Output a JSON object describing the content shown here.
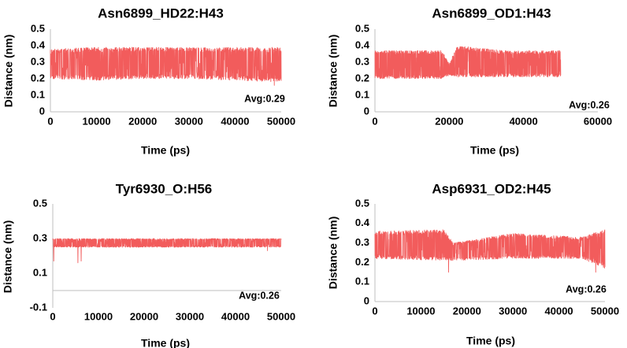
{
  "chart_data": [
    {
      "type": "line",
      "title": "Asn6899_HD22:H43",
      "xlabel": "Time (ps)",
      "ylabel": "Distance (nm)",
      "xlim": [
        0,
        50000
      ],
      "ylim": [
        0,
        0.5
      ],
      "xticks": [
        "0",
        "10000",
        "20000",
        "30000",
        "40000",
        "50000"
      ],
      "yticks": [
        "0",
        "0.1",
        "0.2",
        "0.3",
        "0.4",
        "0.5"
      ],
      "annotation": "Avg:0.29",
      "color": "#f25c5c",
      "series": [
        {
          "x_range": [
            0,
            50000
          ],
          "band": [
            {
              "x": 0,
              "low": 0.2,
              "high": 0.38
            },
            {
              "x": 10000,
              "low": 0.19,
              "high": 0.39
            },
            {
              "x": 20000,
              "low": 0.2,
              "high": 0.39
            },
            {
              "x": 30000,
              "low": 0.2,
              "high": 0.39
            },
            {
              "x": 40000,
              "low": 0.19,
              "high": 0.39
            },
            {
              "x": 50000,
              "low": 0.18,
              "high": 0.39
            }
          ],
          "dips": [
            {
              "x": 48500,
              "y": 0.16
            }
          ]
        }
      ]
    },
    {
      "type": "line",
      "title": "Asn6899_OD1:H43",
      "xlabel": "Time (ps)",
      "ylabel": "Distance (nm)",
      "xlim": [
        0,
        60000
      ],
      "ylim": [
        0,
        0.5
      ],
      "xticks": [
        "0",
        "20000",
        "40000",
        "60000"
      ],
      "yticks": [
        "0",
        "0.1",
        "0.2",
        "0.3",
        "0.4",
        "0.5"
      ],
      "annotation": "Avg:0.26",
      "color": "#f25c5c",
      "series": [
        {
          "x_range": [
            0,
            50000
          ],
          "band": [
            {
              "x": 0,
              "low": 0.2,
              "high": 0.37
            },
            {
              "x": 18000,
              "low": 0.2,
              "high": 0.37
            },
            {
              "x": 20000,
              "low": 0.22,
              "high": 0.29
            },
            {
              "x": 22000,
              "low": 0.21,
              "high": 0.4
            },
            {
              "x": 35000,
              "low": 0.21,
              "high": 0.37
            },
            {
              "x": 50000,
              "low": 0.21,
              "high": 0.37
            }
          ],
          "dips": []
        }
      ]
    },
    {
      "type": "line",
      "title": "Tyr6930_O:H56",
      "xlabel": "Time (ps)",
      "ylabel": "Distance (nm)",
      "xlim": [
        0,
        50000
      ],
      "ylim": [
        -0.1,
        0.5
      ],
      "xticks": [
        "0",
        "10000",
        "20000",
        "30000",
        "40000",
        "50000"
      ],
      "yticks": [
        "-0.1",
        "0.1",
        "0.3",
        "0.5"
      ],
      "annotation": "Avg:0.26",
      "color": "#f25c5c",
      "series": [
        {
          "x_range": [
            0,
            50000
          ],
          "band": [
            {
              "x": 0,
              "low": 0.25,
              "high": 0.3
            },
            {
              "x": 25000,
              "low": 0.25,
              "high": 0.3
            },
            {
              "x": 50000,
              "low": 0.25,
              "high": 0.3
            }
          ],
          "dips": [
            {
              "x": 200,
              "y": 0.17
            },
            {
              "x": 5500,
              "y": 0.16
            },
            {
              "x": 6200,
              "y": 0.17
            },
            {
              "x": 47000,
              "y": 0.23
            }
          ]
        }
      ]
    },
    {
      "type": "line",
      "title": "Asp6931_OD2:H45",
      "xlabel": "Time (ps)",
      "ylabel": "Distance (nm)",
      "xlim": [
        0,
        50000
      ],
      "ylim": [
        0,
        0.5
      ],
      "xticks": [
        "0",
        "10000",
        "20000",
        "30000",
        "40000",
        "50000"
      ],
      "yticks": [
        "0",
        "0.1",
        "0.2",
        "0.3",
        "0.4",
        "0.5"
      ],
      "annotation": "Avg:0.26",
      "color": "#f25c5c",
      "series": [
        {
          "x_range": [
            0,
            50000
          ],
          "band": [
            {
              "x": 0,
              "low": 0.22,
              "high": 0.36
            },
            {
              "x": 15000,
              "low": 0.21,
              "high": 0.37
            },
            {
              "x": 17000,
              "low": 0.21,
              "high": 0.3
            },
            {
              "x": 30000,
              "low": 0.22,
              "high": 0.35
            },
            {
              "x": 45000,
              "low": 0.22,
              "high": 0.33
            },
            {
              "x": 50000,
              "low": 0.17,
              "high": 0.37
            }
          ],
          "dips": [
            {
              "x": 16000,
              "y": 0.15
            },
            {
              "x": 48000,
              "y": 0.15
            }
          ]
        }
      ]
    }
  ]
}
